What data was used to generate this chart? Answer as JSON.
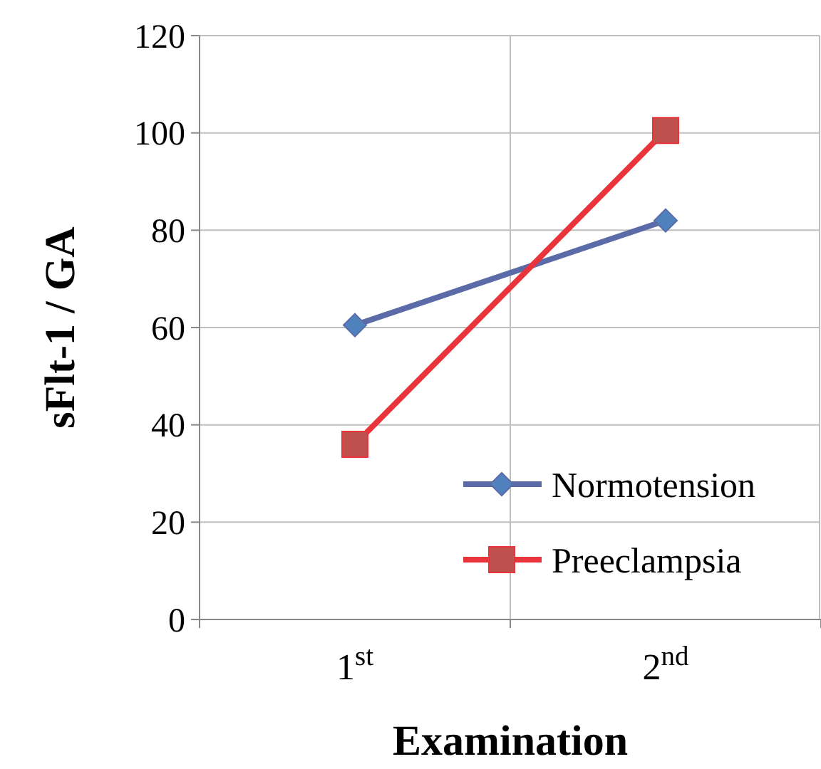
{
  "chart_data": {
    "type": "line",
    "xlabel": "Examination",
    "ylabel": "sFlt-1 / GA",
    "categories": [
      "1$^{st}$",
      "2$^{nd}$"
    ],
    "series": [
      {
        "name": "Normotension",
        "color": "#5b6ba8",
        "marker": "diamond",
        "values": [
          60.5,
          82
        ]
      },
      {
        "name": "Preeclampsia",
        "color": "#e8343a",
        "marker": "square",
        "values": [
          36,
          100.5
        ]
      }
    ],
    "ylim": [
      0,
      120
    ],
    "yticks": [
      0,
      20,
      40,
      60,
      80,
      100,
      120
    ],
    "grid": true,
    "legend": "bottom right"
  }
}
